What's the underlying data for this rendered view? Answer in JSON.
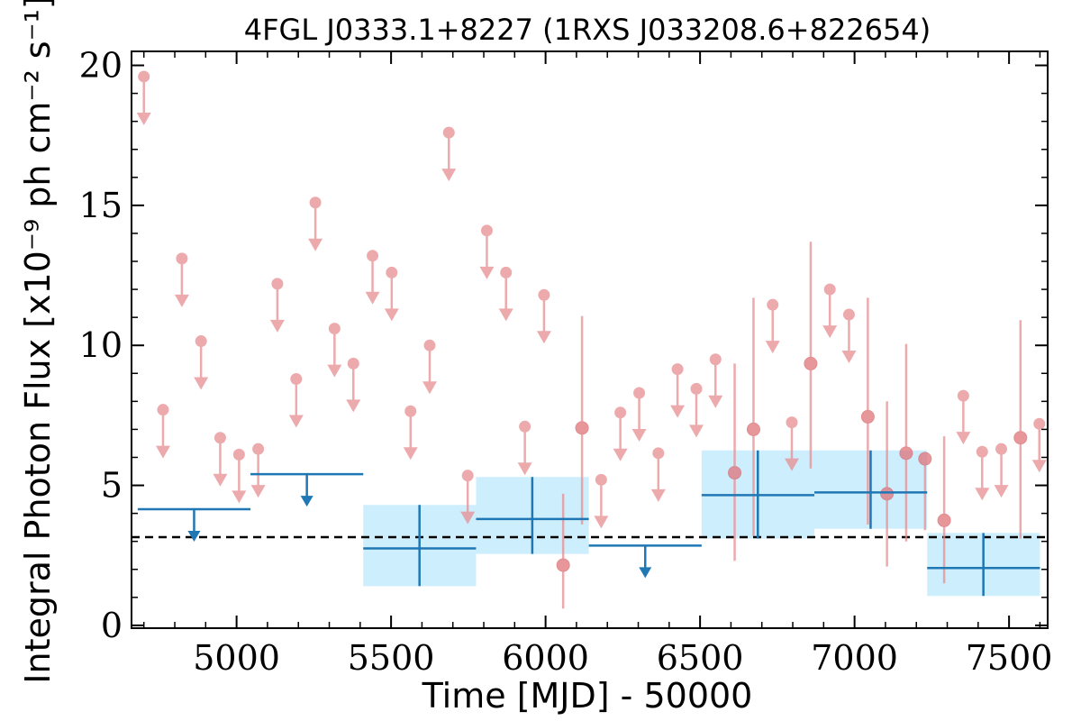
{
  "chart_data": {
    "type": "scatter",
    "title": "4FGL J0333.1+8227 (1RXS J033208.6+822654)",
    "xlabel": "Time [MJD] - 50000",
    "ylabel": "Integral Photon Flux [x10⁻⁹ ph cm⁻² s⁻¹]",
    "xlim": [
      4660,
      7625
    ],
    "ylim": [
      -0.1,
      20.5
    ],
    "x_ticks": [
      5000,
      5500,
      6000,
      6500,
      7000,
      7500
    ],
    "x_tick_labels": [
      "5000",
      "5500",
      "6000",
      "6500",
      "7000",
      "7500"
    ],
    "y_ticks": [
      0,
      5,
      10,
      15,
      20
    ],
    "y_tick_labels": [
      "0",
      "5",
      "10",
      "15",
      "20"
    ],
    "grid": false,
    "reference_line": {
      "y": 3.15,
      "style": "dashed",
      "color": "#000000"
    },
    "colors": {
      "monthly": "#e88e92",
      "yearly": "#1f77b4",
      "band": "#cdeefd"
    },
    "series": [
      {
        "cadence": "monthly",
        "upper_limits": [
          {
            "x": 4700,
            "y": 19.6
          },
          {
            "x": 4762,
            "y": 7.7
          },
          {
            "x": 4823,
            "y": 13.1
          },
          {
            "x": 4885,
            "y": 10.15
          },
          {
            "x": 4947,
            "y": 6.7
          },
          {
            "x": 5008,
            "y": 6.1
          },
          {
            "x": 5070,
            "y": 6.3
          },
          {
            "x": 5132,
            "y": 12.2
          },
          {
            "x": 5193,
            "y": 8.8
          },
          {
            "x": 5255,
            "y": 15.1
          },
          {
            "x": 5317,
            "y": 10.6
          },
          {
            "x": 5378,
            "y": 9.35
          },
          {
            "x": 5440,
            "y": 13.2
          },
          {
            "x": 5502,
            "y": 12.6
          },
          {
            "x": 5563,
            "y": 7.65
          },
          {
            "x": 5625,
            "y": 10.0
          },
          {
            "x": 5687,
            "y": 17.6
          },
          {
            "x": 5748,
            "y": 5.35
          },
          {
            "x": 5810,
            "y": 14.1
          },
          {
            "x": 5872,
            "y": 12.6
          },
          {
            "x": 5933,
            "y": 7.1
          },
          {
            "x": 5995,
            "y": 11.8
          },
          {
            "x": 6180,
            "y": 5.2
          },
          {
            "x": 6242,
            "y": 7.6
          },
          {
            "x": 6303,
            "y": 8.3
          },
          {
            "x": 6365,
            "y": 6.15
          },
          {
            "x": 6427,
            "y": 9.15
          },
          {
            "x": 6488,
            "y": 8.45
          },
          {
            "x": 6550,
            "y": 9.5
          },
          {
            "x": 6735,
            "y": 11.45
          },
          {
            "x": 6797,
            "y": 7.25
          },
          {
            "x": 6920,
            "y": 12.0
          },
          {
            "x": 6982,
            "y": 11.1
          },
          {
            "x": 7352,
            "y": 8.2
          },
          {
            "x": 7413,
            "y": 6.2
          },
          {
            "x": 7475,
            "y": 6.3
          },
          {
            "x": 7598,
            "y": 7.2
          }
        ],
        "detections": [
          {
            "x": 6057,
            "y": 2.15,
            "y_low": 0.6,
            "y_high": 4.7
          },
          {
            "x": 6118,
            "y": 7.05,
            "y_low": 3.6,
            "y_high": 11.05
          },
          {
            "x": 6612,
            "y": 5.45,
            "y_low": 2.3,
            "y_high": 9.35
          },
          {
            "x": 6673,
            "y": 7.0,
            "y_low": 3.2,
            "y_high": 11.7
          },
          {
            "x": 6858,
            "y": 9.35,
            "y_low": 5.6,
            "y_high": 13.7
          },
          {
            "x": 7043,
            "y": 7.45,
            "y_low": 3.6,
            "y_high": 11.7
          },
          {
            "x": 7105,
            "y": 4.7,
            "y_low": 2.1,
            "y_high": 8.0
          },
          {
            "x": 7167,
            "y": 6.15,
            "y_low": 3.0,
            "y_high": 10.05
          },
          {
            "x": 7228,
            "y": 5.95,
            "y_low": 3.4,
            "y_high": 6.0
          },
          {
            "x": 7290,
            "y": 3.75,
            "y_low": 1.5,
            "y_high": 6.75
          },
          {
            "x": 7537,
            "y": 6.7,
            "y_low": 3.1,
            "y_high": 10.9
          }
        ]
      },
      {
        "cadence": "yearly",
        "upper_limits": [
          {
            "x0": 4680,
            "x1": 5045,
            "y": 4.15
          },
          {
            "x0": 5045,
            "x1": 5410,
            "y": 5.4
          },
          {
            "x0": 6140,
            "x1": 6505,
            "y": 2.85
          }
        ],
        "detections": [
          {
            "x0": 5410,
            "x1": 5775,
            "x": 5592,
            "y": 2.75,
            "y_low": 1.4,
            "y_high": 4.3
          },
          {
            "x0": 5775,
            "x1": 6140,
            "x": 5957,
            "y": 3.8,
            "y_low": 2.55,
            "y_high": 5.3
          },
          {
            "x0": 6505,
            "x1": 6870,
            "x": 6687,
            "y": 4.65,
            "y_low": 3.1,
            "y_high": 6.25
          },
          {
            "x0": 6870,
            "x1": 7235,
            "x": 7052,
            "y": 4.75,
            "y_low": 3.45,
            "y_high": 6.25
          },
          {
            "x0": 7235,
            "x1": 7600,
            "x": 7417,
            "y": 2.05,
            "y_low": 1.05,
            "y_high": 3.3
          }
        ]
      }
    ]
  }
}
